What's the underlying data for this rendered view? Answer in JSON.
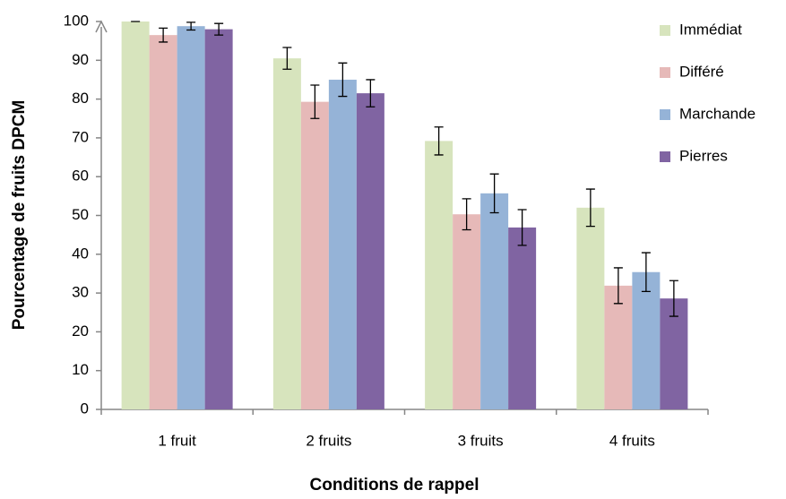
{
  "chart_data": {
    "type": "bar",
    "xlabel": "Conditions de rappel",
    "ylabel": "Pourcentage de fruits DPCM",
    "categories": [
      "1 fruit",
      "2 fruits",
      "3 fruits",
      "4 fruits"
    ],
    "series": [
      {
        "name": "Immédiat",
        "color": "#d7e4bd",
        "values": [
          100,
          90.5,
          69.2,
          52
        ],
        "errors": [
          0,
          2.8,
          3.6,
          4.8
        ]
      },
      {
        "name": "Différé",
        "color": "#e6b9b8",
        "values": [
          96.5,
          79.3,
          50.3,
          31.9
        ],
        "errors": [
          1.8,
          4.3,
          4,
          4.6
        ]
      },
      {
        "name": "Marchande",
        "color": "#95b3d7",
        "values": [
          98.8,
          85,
          55.7,
          35.4
        ],
        "errors": [
          1,
          4.3,
          5,
          5
        ]
      },
      {
        "name": "Pierres",
        "color": "#8064a2",
        "values": [
          98,
          81.5,
          46.9,
          28.6
        ],
        "errors": [
          1.5,
          3.5,
          4.6,
          4.6
        ]
      }
    ],
    "ylim": [
      0,
      100
    ],
    "yticks": [
      0,
      10,
      20,
      30,
      40,
      50,
      60,
      70,
      80,
      90,
      100
    ],
    "grid": false,
    "legend": "right"
  }
}
